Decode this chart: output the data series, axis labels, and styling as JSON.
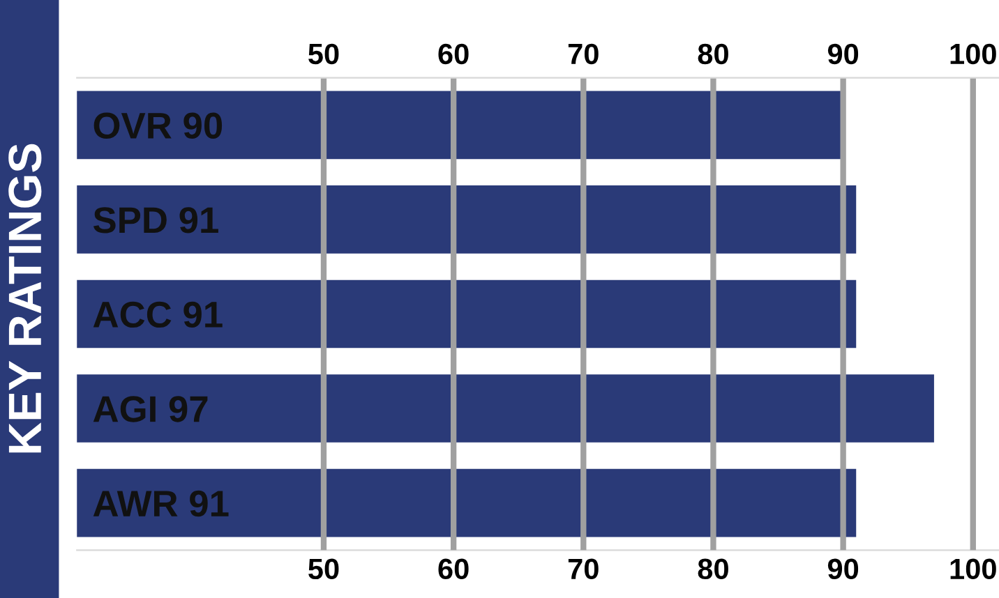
{
  "chart_data": {
    "type": "bar",
    "orientation": "horizontal",
    "title": "KEY RATINGS",
    "categories": [
      "OVR 90",
      "SPD 91",
      "ACC 91",
      "AGI 97",
      "AWR 91"
    ],
    "values": [
      90,
      91,
      91,
      97,
      91
    ],
    "color": "#2a3a78",
    "xlim": [
      31,
      102
    ],
    "xticks": [
      50,
      60,
      70,
      80,
      90,
      100
    ],
    "x2lim": [
      31,
      102
    ],
    "x2ticks": [
      50,
      60,
      70,
      80,
      90,
      100
    ],
    "grid": "x"
  }
}
